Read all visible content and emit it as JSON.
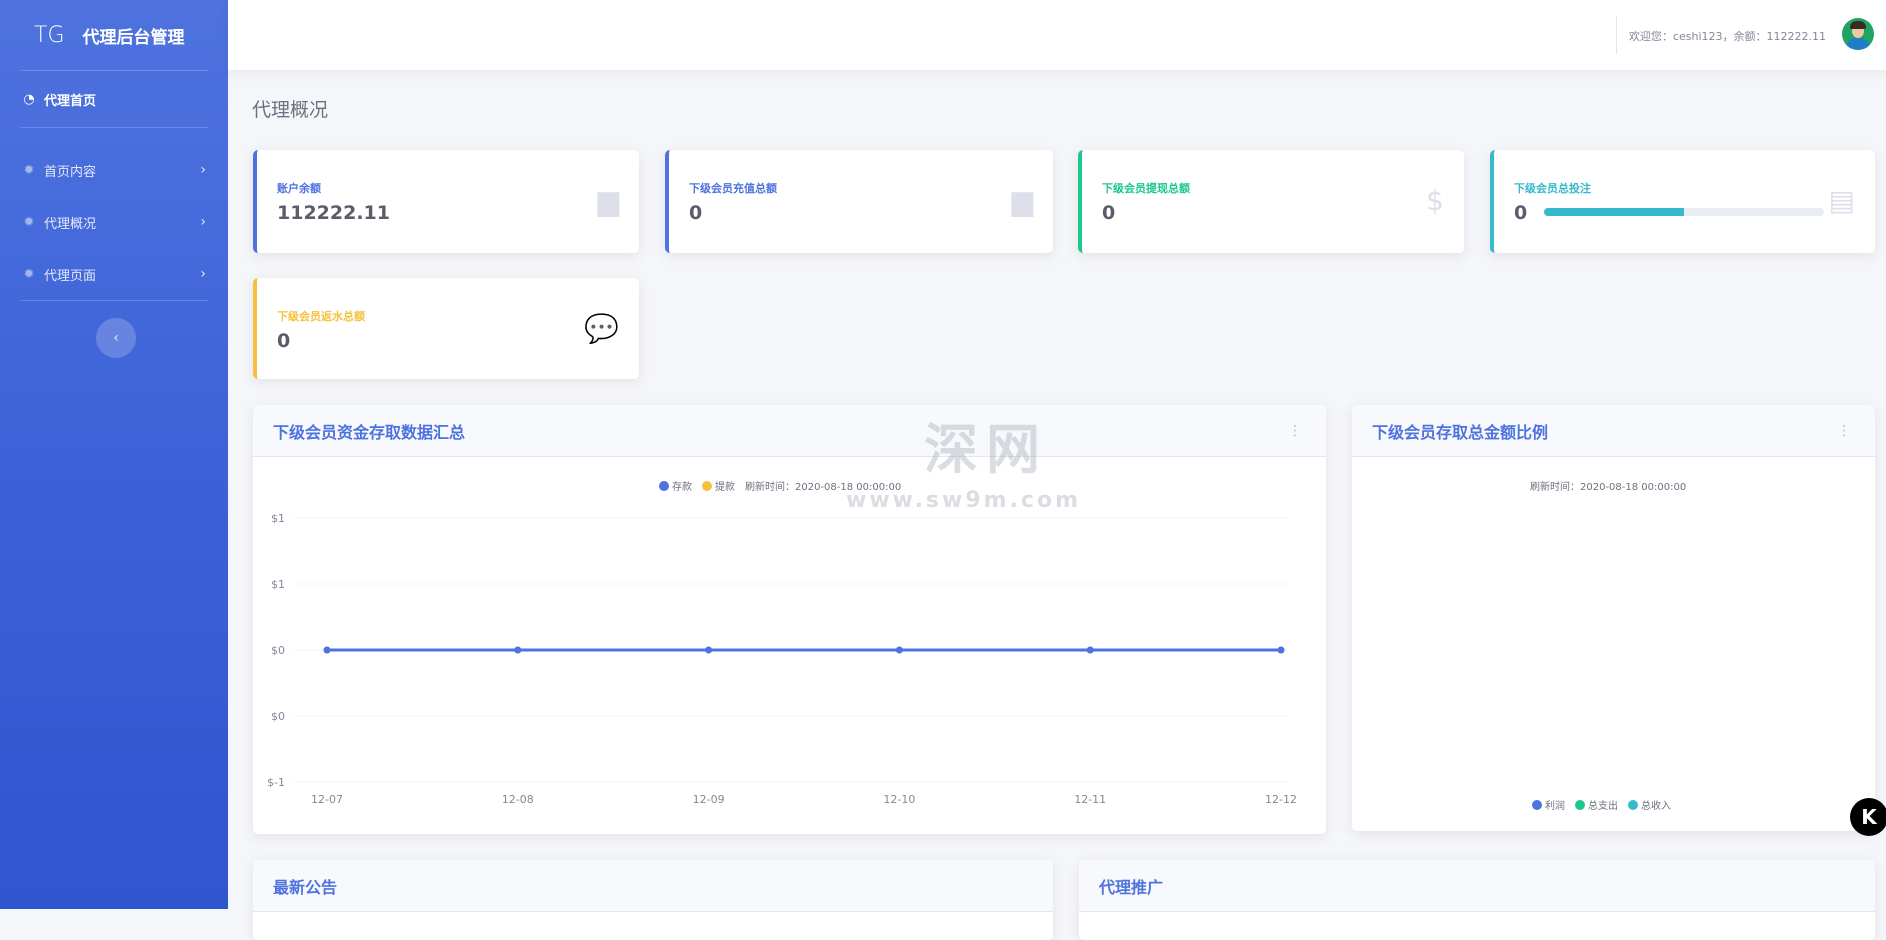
{
  "brand": {
    "short": "TG",
    "title": "代理后台管理"
  },
  "sidebar": {
    "items": [
      {
        "label": "代理首页",
        "icon": "dashboard-icon",
        "active": true
      },
      {
        "label": "首页内容",
        "icon": "gear-icon"
      },
      {
        "label": "代理概况",
        "icon": "gear-icon"
      },
      {
        "label": "代理页面",
        "icon": "gear-icon"
      }
    ],
    "toggle_icon": "chevron-left-icon"
  },
  "topbar": {
    "welcome": "欢迎您：ceshi123，余额：112222.11"
  },
  "page": {
    "title": "代理概况"
  },
  "cards": [
    {
      "label": "账户余额",
      "value": "112222.11",
      "color": "#4e73df",
      "icon": "calendar-icon"
    },
    {
      "label": "下级会员充值总额",
      "value": "0",
      "color": "#4e73df",
      "icon": "calendar-icon"
    },
    {
      "label": "下级会员提现总额",
      "value": "0",
      "color": "#1cc88a",
      "icon": "dollar-icon"
    },
    {
      "label": "下级会员总投注",
      "value": "0",
      "color": "#36b9cc",
      "icon": "clipboard-icon",
      "progress": 0.5
    },
    {
      "label": "下级会员返水总额",
      "value": "0",
      "color": "#f6c23e",
      "icon": "comments-icon"
    }
  ],
  "panels": {
    "funds": {
      "title": "下级会员资金存取数据汇总",
      "refresh": "刷新时间：2020-08-18 00:00:00"
    },
    "ratio": {
      "title": "下级会员存取总金额比例",
      "refresh": "刷新时间：2020-08-18 00:00:00",
      "legend": [
        {
          "name": "利润",
          "color": "#4e73df"
        },
        {
          "name": "总支出",
          "color": "#1cc88a"
        },
        {
          "name": "总收入",
          "color": "#36b9cc"
        }
      ]
    },
    "notice": {
      "title": "最新公告"
    },
    "promo": {
      "title": "代理推广"
    }
  },
  "watermark": {
    "text": "深网",
    "url": "www.sw9m.com"
  },
  "chart_data": {
    "type": "line",
    "categories": [
      "12-07",
      "12-08",
      "12-09",
      "12-10",
      "12-11",
      "12-12"
    ],
    "series": [
      {
        "name": "存款",
        "color": "#4e73df",
        "values": [
          0,
          0,
          0,
          0,
          0,
          0
        ]
      },
      {
        "name": "提款",
        "color": "#f6c23e",
        "values": [
          0,
          0,
          0,
          0,
          0,
          0
        ]
      }
    ],
    "yticks": [
      "$-1",
      "$0",
      "$0",
      "$1",
      "$1"
    ],
    "ylim": [
      -1,
      1
    ],
    "grid": true,
    "legend": "top"
  }
}
